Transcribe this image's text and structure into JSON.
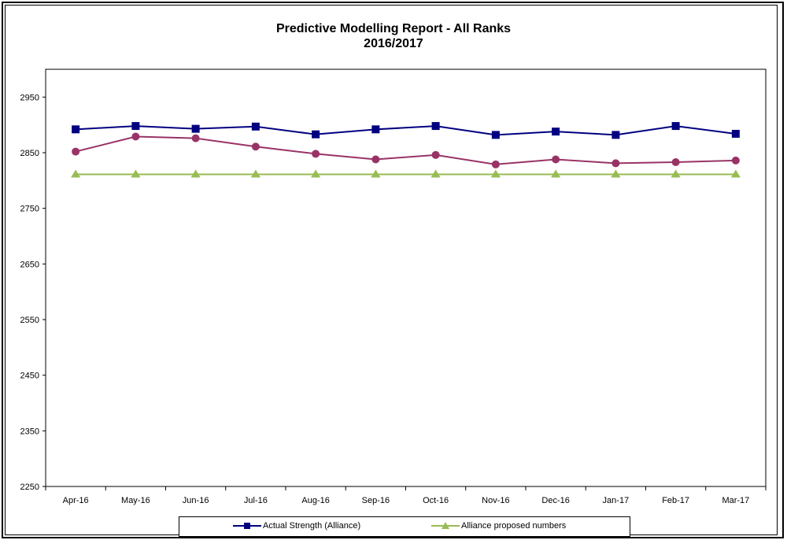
{
  "chart_data": {
    "type": "line",
    "title": "Predictive Modelling Report - All Ranks",
    "subtitle": "2016/2017",
    "categories": [
      "Apr-16",
      "May-16",
      "Jun-16",
      "Jul-16",
      "Aug-16",
      "Sep-16",
      "Oct-16",
      "Nov-16",
      "Dec-16",
      "Jan-17",
      "Feb-17",
      "Mar-17"
    ],
    "ylim": [
      2250,
      3000
    ],
    "yticks": [
      2250,
      2350,
      2450,
      2550,
      2650,
      2750,
      2850,
      2950
    ],
    "grid": false,
    "legend_position": "bottom",
    "series": [
      {
        "name": "Actual Strength (Alliance)",
        "color": "#000080",
        "marker": "square",
        "values": [
          2892,
          2898,
          2893,
          2897,
          2883,
          2892,
          2898,
          2882,
          2888,
          2882,
          2898,
          2884
        ]
      },
      {
        "name": "",
        "color": "#993366",
        "marker": "circle",
        "values": [
          2852,
          2879,
          2876,
          2861,
          2848,
          2838,
          2846,
          2829,
          2838,
          2831,
          2833,
          2836
        ]
      },
      {
        "name": "Alliance proposed numbers",
        "color": "#99BB55",
        "marker": "triangle",
        "values": [
          2811,
          2811,
          2811,
          2811,
          2811,
          2811,
          2811,
          2811,
          2811,
          2811,
          2811,
          2811
        ]
      }
    ]
  }
}
